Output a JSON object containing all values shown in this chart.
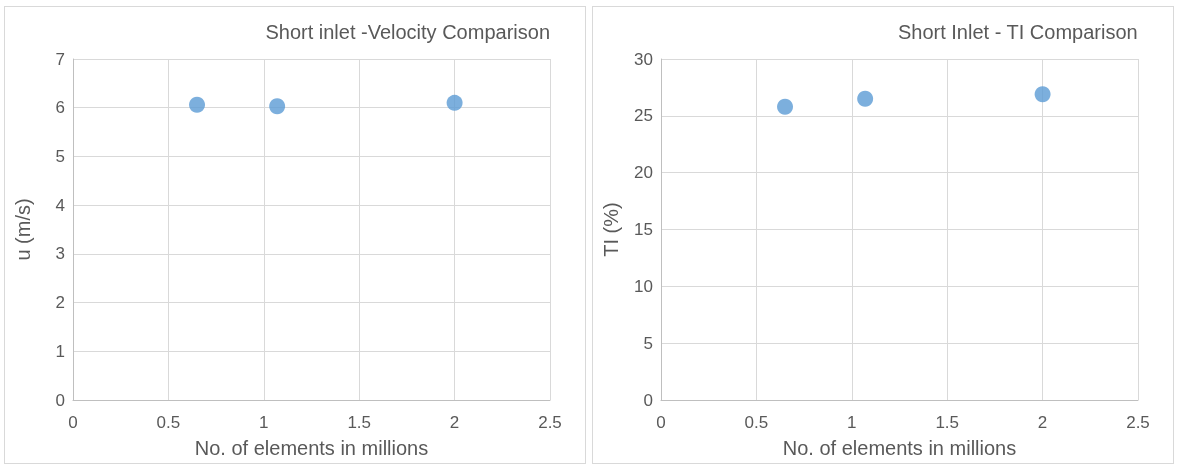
{
  "chart_data": [
    {
      "type": "scatter",
      "title": "Short inlet -Velocity Comparison",
      "xlabel": "No. of elements in millions",
      "ylabel": "u (m/s)",
      "x": [
        0.65,
        1.07,
        2.0
      ],
      "series": [
        {
          "color": "#5b9bd5",
          "values": [
            6.06,
            6.03,
            6.1
          ]
        }
      ],
      "xlim": [
        0,
        2.5
      ],
      "xticks": [
        0,
        0.5,
        1,
        1.5,
        2,
        2.5
      ],
      "ylim": [
        0,
        7
      ],
      "yticks": [
        0,
        1,
        2,
        3,
        4,
        5,
        6,
        7
      ],
      "grid": true,
      "marker": "circle"
    },
    {
      "type": "scatter",
      "title": "Short Inlet - TI Comparison",
      "xlabel": "No. of elements in millions",
      "ylabel": "TI (%)",
      "x": [
        0.65,
        1.07,
        2.0
      ],
      "series": [
        {
          "color": "#5b9bd5",
          "values": [
            25.8,
            26.5,
            26.9
          ]
        }
      ],
      "xlim": [
        0,
        2.5
      ],
      "xticks": [
        0,
        0.5,
        1,
        1.5,
        2,
        2.5
      ],
      "ylim": [
        0,
        30
      ],
      "yticks": [
        0,
        5,
        10,
        15,
        20,
        25,
        30
      ],
      "grid": true,
      "marker": "circle"
    }
  ]
}
